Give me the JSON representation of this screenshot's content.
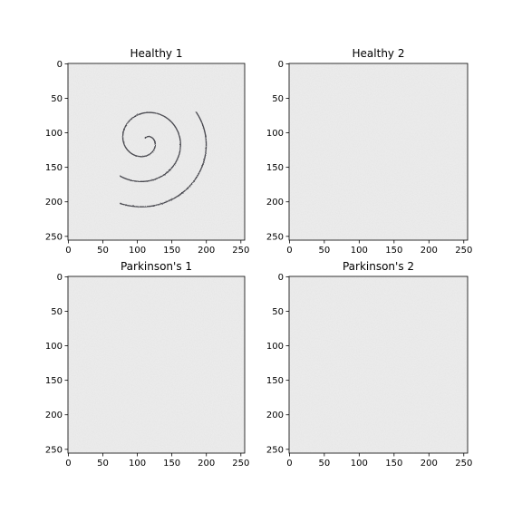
{
  "figure": {
    "background": "#ffffff",
    "paper_color": "#eeeeee",
    "axis_range": [
      0,
      255
    ],
    "x_ticks": [
      "0",
      "50",
      "100",
      "150",
      "200",
      "250"
    ],
    "y_ticks": [
      "0",
      "50",
      "100",
      "150",
      "200",
      "250"
    ],
    "panels": [
      {
        "title": "Healthy 1",
        "stroke": "#2f2f36"
      },
      {
        "title": "Healthy 2",
        "stroke": "#5a5a5a"
      },
      {
        "title": "Parkinson's 1",
        "stroke": "#6a6a6a"
      },
      {
        "title": "Parkinson's 2",
        "stroke": "#4e4e58"
      }
    ]
  }
}
